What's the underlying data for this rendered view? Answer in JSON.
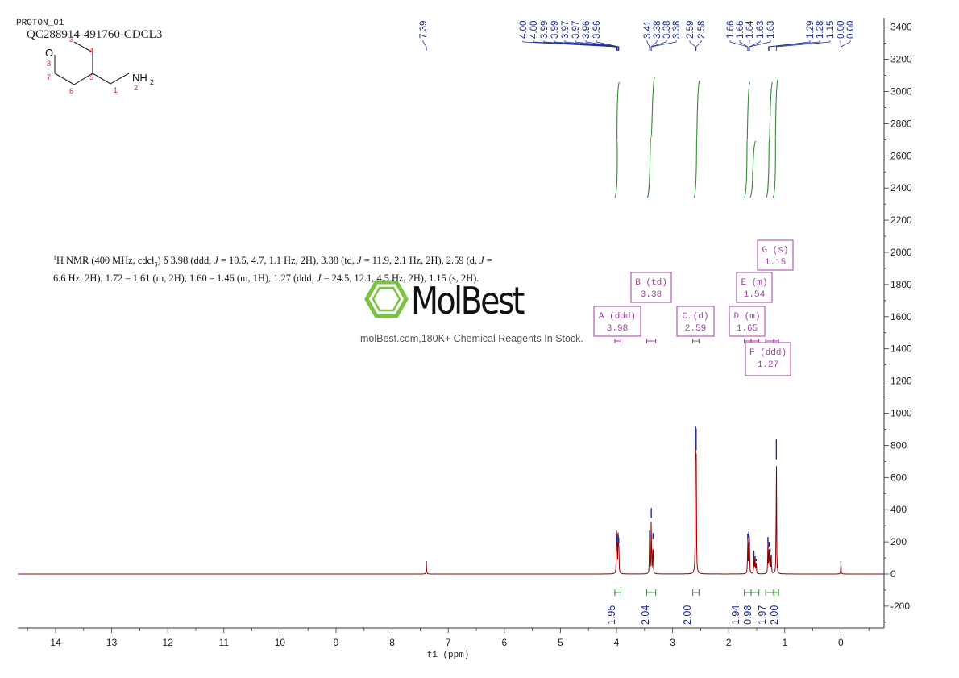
{
  "sample": {
    "title": "PROTON_01",
    "name": "QC288914-491760-CDCL3"
  },
  "structure": {
    "atom_O": "O",
    "atom_NH": "NH",
    "atom_NH_sub": "2",
    "numbers": [
      "3",
      "8",
      "7",
      "6",
      "5",
      "4",
      "1",
      "2"
    ]
  },
  "description": [
    {
      "t": "1",
      "sup": true
    },
    {
      "t": "H NMR (400 MHz, cdcl"
    },
    {
      "t": "3",
      "sub": true
    },
    {
      "t": ") δ 3.98 (ddd, "
    },
    {
      "t": "J",
      "i": true
    },
    {
      "t": " = 10.5, 4.7, 1.1 Hz, 2H), 3.38 (td, "
    },
    {
      "t": "J",
      "i": true
    },
    {
      "t": " = 11.9, 2.1 Hz, 2H), 2.59 (d, "
    },
    {
      "t": "J",
      "i": true
    },
    {
      "t": " = 6.6 Hz, 2H), 1.72 – 1.61 (m, 2H), 1.60 – 1.46 (m, 1H), 1.27 (ddd, "
    },
    {
      "t": "J",
      "i": true
    },
    {
      "t": " = 24.5, 12.1, 4.5 Hz, 2H), 1.15 (s, 2H)."
    }
  ],
  "watermark": {
    "brand": "MolBest",
    "tagline": "molBest.com,180K+ Chemical Reagents In Stock."
  },
  "colors": {
    "spectrum": "#8b0000",
    "peak_top": "#1f2f9c",
    "integral": "#2e8b2e",
    "multiplet": "#a040a0",
    "axis": "#333333",
    "logo_green": "#7cc242"
  },
  "chart_data": {
    "type": "line",
    "xlabel": "f1 (ppm)",
    "x_axis": {
      "range": [
        14.75,
        -0.8
      ],
      "reversed": true,
      "ticks": [
        14,
        13,
        12,
        11,
        10,
        9,
        8,
        7,
        6,
        5,
        4,
        3,
        2,
        1,
        0
      ]
    },
    "y_axis": {
      "range": [
        -340,
        3450
      ],
      "ticks": [
        -200,
        0,
        200,
        400,
        600,
        800,
        1000,
        1200,
        1400,
        1600,
        1800,
        2000,
        2200,
        2400,
        2600,
        2800,
        3000,
        3200,
        3400
      ],
      "position": "right"
    },
    "peak_picks": [
      "7.39",
      "4.00",
      "4.00",
      "3.99",
      "3.99",
      "3.97",
      "3.97",
      "3.96",
      "3.96",
      "3.41",
      "3.38",
      "3.38",
      "3.38",
      "2.59",
      "2.58",
      "1.66",
      "1.66",
      "1.64",
      "1.63",
      "1.63",
      "1.29",
      "1.28",
      "1.15",
      "0.00",
      "0.00"
    ],
    "peaks": [
      {
        "ppm": 7.39,
        "height": 80
      },
      {
        "ppm": 4.0,
        "height": 230
      },
      {
        "ppm": 3.99,
        "height": 245
      },
      {
        "ppm": 3.97,
        "height": 240
      },
      {
        "ppm": 3.96,
        "height": 225
      },
      {
        "ppm": 3.41,
        "height": 270
      },
      {
        "ppm": 3.38,
        "height": 410
      },
      {
        "ppm": 3.35,
        "height": 255
      },
      {
        "ppm": 2.59,
        "height": 920
      },
      {
        "ppm": 2.58,
        "height": 905
      },
      {
        "ppm": 1.66,
        "height": 250
      },
      {
        "ppm": 1.64,
        "height": 265
      },
      {
        "ppm": 1.63,
        "height": 200
      },
      {
        "ppm": 1.55,
        "height": 140
      },
      {
        "ppm": 1.53,
        "height": 110
      },
      {
        "ppm": 1.51,
        "height": 95
      },
      {
        "ppm": 1.3,
        "height": 230
      },
      {
        "ppm": 1.28,
        "height": 200
      },
      {
        "ppm": 1.26,
        "height": 160
      },
      {
        "ppm": 1.24,
        "height": 120
      },
      {
        "ppm": 1.15,
        "height": 840
      },
      {
        "ppm": 0.0,
        "height": 80
      }
    ],
    "integrals": [
      {
        "from": 4.03,
        "to": 3.92,
        "value": "1.95"
      },
      {
        "from": 3.46,
        "to": 3.3,
        "value": "2.04"
      },
      {
        "from": 2.64,
        "to": 2.53,
        "value": "2.00"
      },
      {
        "from": 1.72,
        "to": 1.6,
        "value": "1.94"
      },
      {
        "from": 1.6,
        "to": 1.46,
        "value": "0.98"
      },
      {
        "from": 1.34,
        "to": 1.2,
        "value": "1.97"
      },
      {
        "from": 1.19,
        "to": 1.11,
        "value": "2.00"
      }
    ],
    "multiplets": [
      {
        "label": "A (ddd)",
        "shift": "3.98",
        "center": 3.98,
        "from": 4.03,
        "to": 3.92
      },
      {
        "label": "B (td)",
        "shift": "3.38",
        "center": 3.38,
        "from": 3.46,
        "to": 3.3
      },
      {
        "label": "C (d)",
        "shift": "2.59",
        "center": 2.59,
        "from": 2.64,
        "to": 2.53
      },
      {
        "label": "D (m)",
        "shift": "1.65",
        "center": 1.65,
        "from": 1.72,
        "to": 1.6
      },
      {
        "label": "E (m)",
        "shift": "1.54",
        "center": 1.54,
        "from": 1.6,
        "to": 1.46
      },
      {
        "label": "F (ddd)",
        "shift": "1.27",
        "center": 1.27,
        "from": 1.34,
        "to": 1.2
      },
      {
        "label": "G (s)",
        "shift": "1.15",
        "center": 1.15,
        "from": 1.19,
        "to": 1.11
      }
    ]
  }
}
